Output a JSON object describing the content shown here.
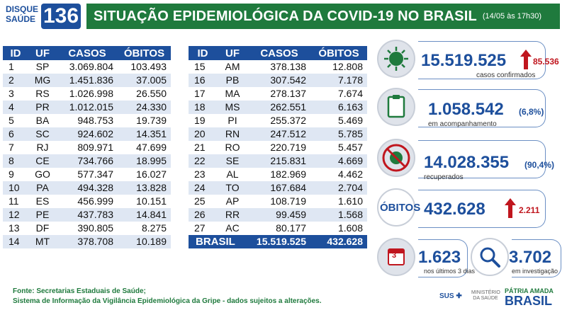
{
  "header": {
    "logo_top": "DISQUE",
    "logo_bottom": "SAÚDE",
    "logo_number": "136",
    "title": "SITUAÇÃO EPIDEMIOLÓGICA DA COVID-19 NO BRASIL",
    "date": "(14/05 às 17h30)"
  },
  "table": {
    "headers": [
      "ID",
      "UF",
      "CASOS",
      "ÓBITOS"
    ],
    "left_rows": [
      [
        "1",
        "SP",
        "3.069.804",
        "103.493"
      ],
      [
        "2",
        "MG",
        "1.451.836",
        "37.005"
      ],
      [
        "3",
        "RS",
        "1.026.998",
        "26.550"
      ],
      [
        "4",
        "PR",
        "1.012.015",
        "24.330"
      ],
      [
        "5",
        "BA",
        "948.753",
        "19.739"
      ],
      [
        "6",
        "SC",
        "924.602",
        "14.351"
      ],
      [
        "7",
        "RJ",
        "809.971",
        "47.699"
      ],
      [
        "8",
        "CE",
        "734.766",
        "18.995"
      ],
      [
        "9",
        "GO",
        "577.347",
        "16.027"
      ],
      [
        "10",
        "PA",
        "494.328",
        "13.828"
      ],
      [
        "11",
        "ES",
        "456.999",
        "10.151"
      ],
      [
        "12",
        "PE",
        "437.783",
        "14.841"
      ],
      [
        "13",
        "DF",
        "390.805",
        "8.275"
      ],
      [
        "14",
        "MT",
        "378.708",
        "10.189"
      ]
    ],
    "right_rows": [
      [
        "15",
        "AM",
        "378.138",
        "12.808"
      ],
      [
        "16",
        "PB",
        "307.542",
        "7.178"
      ],
      [
        "17",
        "MA",
        "278.137",
        "7.674"
      ],
      [
        "18",
        "MS",
        "262.551",
        "6.163"
      ],
      [
        "19",
        "PI",
        "255.372",
        "5.469"
      ],
      [
        "20",
        "RN",
        "247.512",
        "5.785"
      ],
      [
        "21",
        "RO",
        "220.719",
        "5.457"
      ],
      [
        "22",
        "SE",
        "215.831",
        "4.669"
      ],
      [
        "23",
        "AL",
        "182.969",
        "4.462"
      ],
      [
        "24",
        "TO",
        "167.684",
        "2.704"
      ],
      [
        "25",
        "AP",
        "108.719",
        "1.610"
      ],
      [
        "26",
        "RR",
        "99.459",
        "1.568"
      ],
      [
        "27",
        "AC",
        "80.177",
        "1.608"
      ]
    ],
    "total": {
      "label": "BRASIL",
      "casos": "15.519.525",
      "obitos": "432.628"
    }
  },
  "stats": {
    "confirmed": {
      "value": "15.519.525",
      "delta": "85.536",
      "label": "casos confirmados",
      "icon": "virus-icon"
    },
    "monitoring": {
      "value": "1.058.542",
      "pct": "(6,8%)",
      "label": "em acompanhamento",
      "icon": "clipboard-icon"
    },
    "recovered": {
      "value": "14.028.355",
      "pct": "(90,4%)",
      "label": "recuperados",
      "icon": "no-virus-icon"
    },
    "deaths": {
      "word": "ÓBITOS",
      "value": "432.628",
      "delta": "2.211"
    },
    "last3": {
      "value": "1.623",
      "label": "nos últimos 3 dias",
      "icon_text": "3",
      "icon": "calendar-icon"
    },
    "investigation": {
      "value": "3.702",
      "label": "em investigação",
      "icon": "magnifier-icon"
    }
  },
  "footer": {
    "line1": "Fonte: Secretarias Estaduais de Saúde;",
    "line2": "Sistema de Informação da Vigilância Epidemiológica da Gripe - dados sujeitos a alterações.",
    "sus": "SUS",
    "ministry": "MINISTÉRIO DA SAÚDE",
    "gov_top": "PÁTRIA AMADA",
    "gov_bottom": "BRASIL"
  },
  "colors": {
    "blue": "#1d4f9c",
    "green": "#1f7a3d",
    "red": "#c0161e"
  }
}
